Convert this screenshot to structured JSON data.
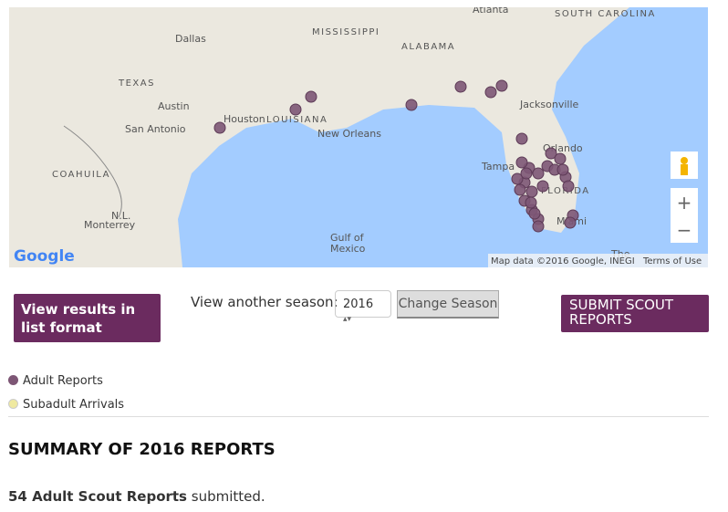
{
  "map": {
    "labels": [
      "Atlanta",
      "SOUTH CAROLINA",
      "MISSISSIPPI",
      "ALABAMA",
      "Dallas",
      "TEXAS",
      "Austin",
      "San Antonio",
      "Houston",
      "LOUISIANA",
      "New Orleans",
      "Jacksonville",
      "Orlando",
      "FLORIDA",
      "Tampa",
      "Miami",
      "COAHUILA",
      "N.L.",
      "Monterrey",
      "Gulf of",
      "Mexico",
      "The"
    ],
    "logo": "Google",
    "attribution": "Map data ©2016 Google, INEGI",
    "terms": "Terms of Use",
    "zoom_in": "+",
    "zoom_out": "−"
  },
  "controls": {
    "list_button": "View results in list format",
    "season_label": "View another season:",
    "season_select": "2016",
    "change_button": "Change Season",
    "submit_button": "SUBMIT SCOUT REPORTS"
  },
  "legend": [
    "Adult Reports",
    "Subadult Arrivals"
  ],
  "summary": {
    "heading": "SUMMARY OF 2016 REPORTS",
    "count_text": "54 Adult Scout Reports",
    "rest_text": " submitted."
  }
}
